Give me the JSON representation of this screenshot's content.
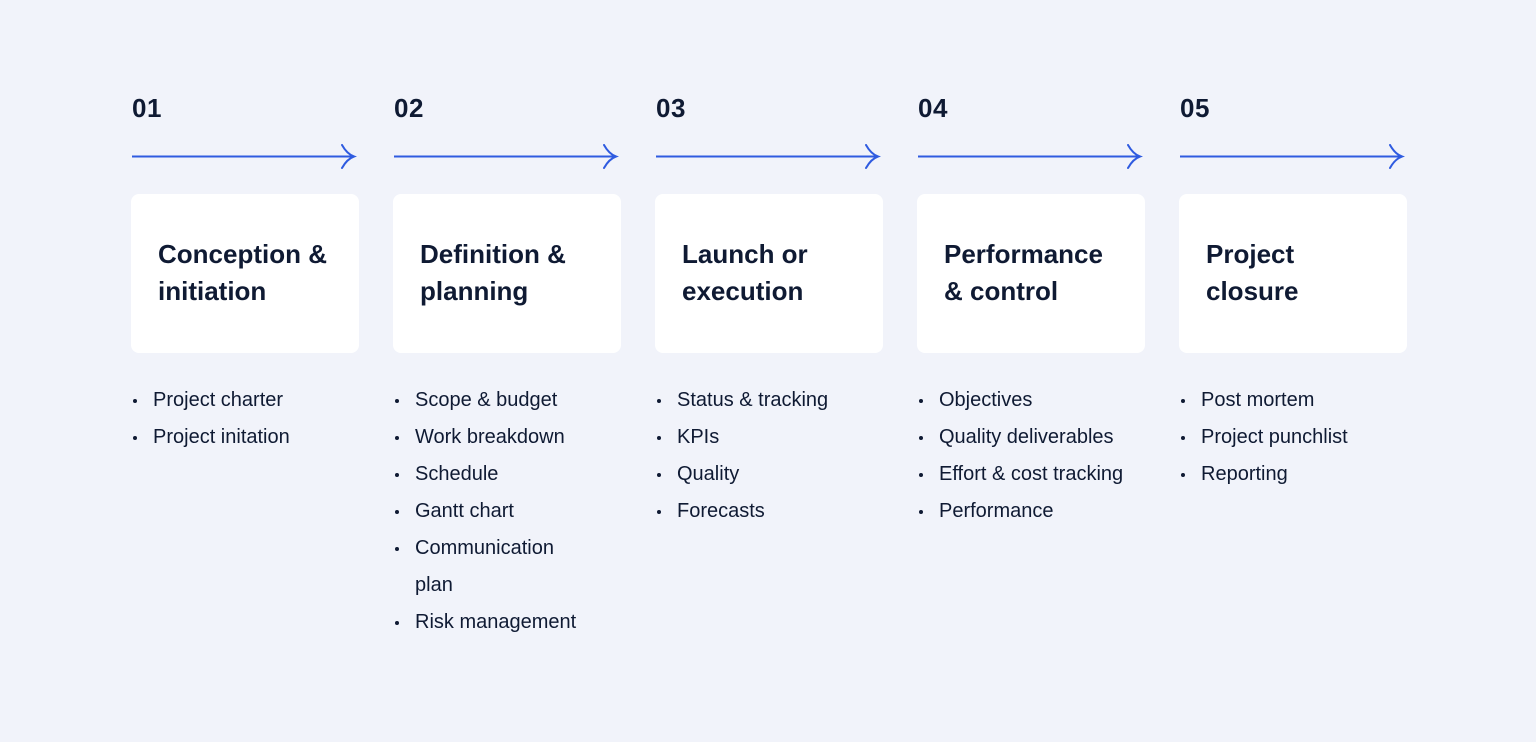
{
  "accent_color": "#2f5be0",
  "phases": [
    {
      "number": "01",
      "title": "Conception & initiation",
      "items": [
        "Project charter",
        "Project initation"
      ]
    },
    {
      "number": "02",
      "title": "Definition & planning",
      "items": [
        "Scope & budget",
        "Work breakdown",
        "Schedule",
        "Gantt chart",
        "Communication plan",
        "Risk management"
      ]
    },
    {
      "number": "03",
      "title": "Launch or execution",
      "items": [
        "Status & tracking",
        "KPIs",
        "Quality",
        "Forecasts"
      ]
    },
    {
      "number": "04",
      "title": "Performance & control",
      "items": [
        "Objectives",
        "Quality deliverables",
        "Effort & cost tracking",
        "Performance"
      ]
    },
    {
      "number": "05",
      "title": "Project closure",
      "items": [
        "Post mortem",
        "Project punchlist",
        "Reporting"
      ]
    }
  ]
}
